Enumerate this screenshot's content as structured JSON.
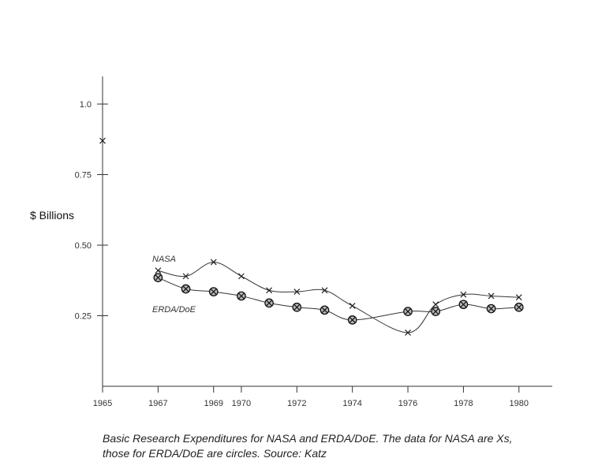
{
  "chart_data": {
    "type": "line",
    "ylabel": "$ Billions",
    "xlabel": "",
    "xlim": [
      1965,
      1981.2
    ],
    "ylim": [
      0.0,
      1.1
    ],
    "x_ticks": [
      {
        "value": 1965,
        "label": "1965"
      },
      {
        "value": 1967,
        "label": "1967"
      },
      {
        "value": 1969,
        "label": "1969"
      },
      {
        "value": 1970,
        "label": "1970"
      },
      {
        "value": 1972,
        "label": "1972"
      },
      {
        "value": 1974,
        "label": "1974"
      },
      {
        "value": 1976,
        "label": "1976"
      },
      {
        "value": 1978,
        "label": "1978"
      },
      {
        "value": 1980,
        "label": "1980"
      }
    ],
    "y_ticks": [
      {
        "value": 1.0,
        "label": "1.0"
      },
      {
        "value": 0.75,
        "label": "0.75"
      },
      {
        "value": 0.5,
        "label": "0.50"
      },
      {
        "value": 0.25,
        "label": "0.25"
      }
    ],
    "series": [
      {
        "name": "NASA",
        "marker": "x",
        "points": [
          {
            "x": 1965,
            "y": 0.87
          },
          {
            "x": 1967,
            "y": 0.41
          },
          {
            "x": 1968,
            "y": 0.39
          },
          {
            "x": 1969,
            "y": 0.44
          },
          {
            "x": 1970,
            "y": 0.39
          },
          {
            "x": 1971,
            "y": 0.34
          },
          {
            "x": 1972,
            "y": 0.335
          },
          {
            "x": 1973,
            "y": 0.34
          },
          {
            "x": 1974,
            "y": 0.285
          },
          {
            "x": 1976,
            "y": 0.19
          },
          {
            "x": 1977,
            "y": 0.29
          },
          {
            "x": 1978,
            "y": 0.325
          },
          {
            "x": 1979,
            "y": 0.32
          },
          {
            "x": 1980,
            "y": 0.315
          }
        ]
      },
      {
        "name": "ERDA/DoE",
        "marker": "circle",
        "points": [
          {
            "x": 1967,
            "y": 0.385
          },
          {
            "x": 1968,
            "y": 0.345
          },
          {
            "x": 1969,
            "y": 0.335
          },
          {
            "x": 1970,
            "y": 0.32
          },
          {
            "x": 1971,
            "y": 0.295
          },
          {
            "x": 1972,
            "y": 0.28
          },
          {
            "x": 1973,
            "y": 0.27
          },
          {
            "x": 1974,
            "y": 0.235
          },
          {
            "x": 1976,
            "y": 0.265
          },
          {
            "x": 1977,
            "y": 0.265
          },
          {
            "x": 1978,
            "y": 0.29
          },
          {
            "x": 1979,
            "y": 0.275
          },
          {
            "x": 1980,
            "y": 0.28
          }
        ]
      }
    ],
    "annotations": [
      {
        "text": "NASA",
        "series": "NASA"
      },
      {
        "text": "ERDA/DoE",
        "series": "ERDA/DoE"
      }
    ],
    "grid": false,
    "legend": "none"
  },
  "caption": {
    "line1": "Basic Research Expenditures for NASA and ERDA/DoE.  The data for NASA are Xs,",
    "line2": "those for ERDA/DoE are circles.  Source: Katz"
  }
}
